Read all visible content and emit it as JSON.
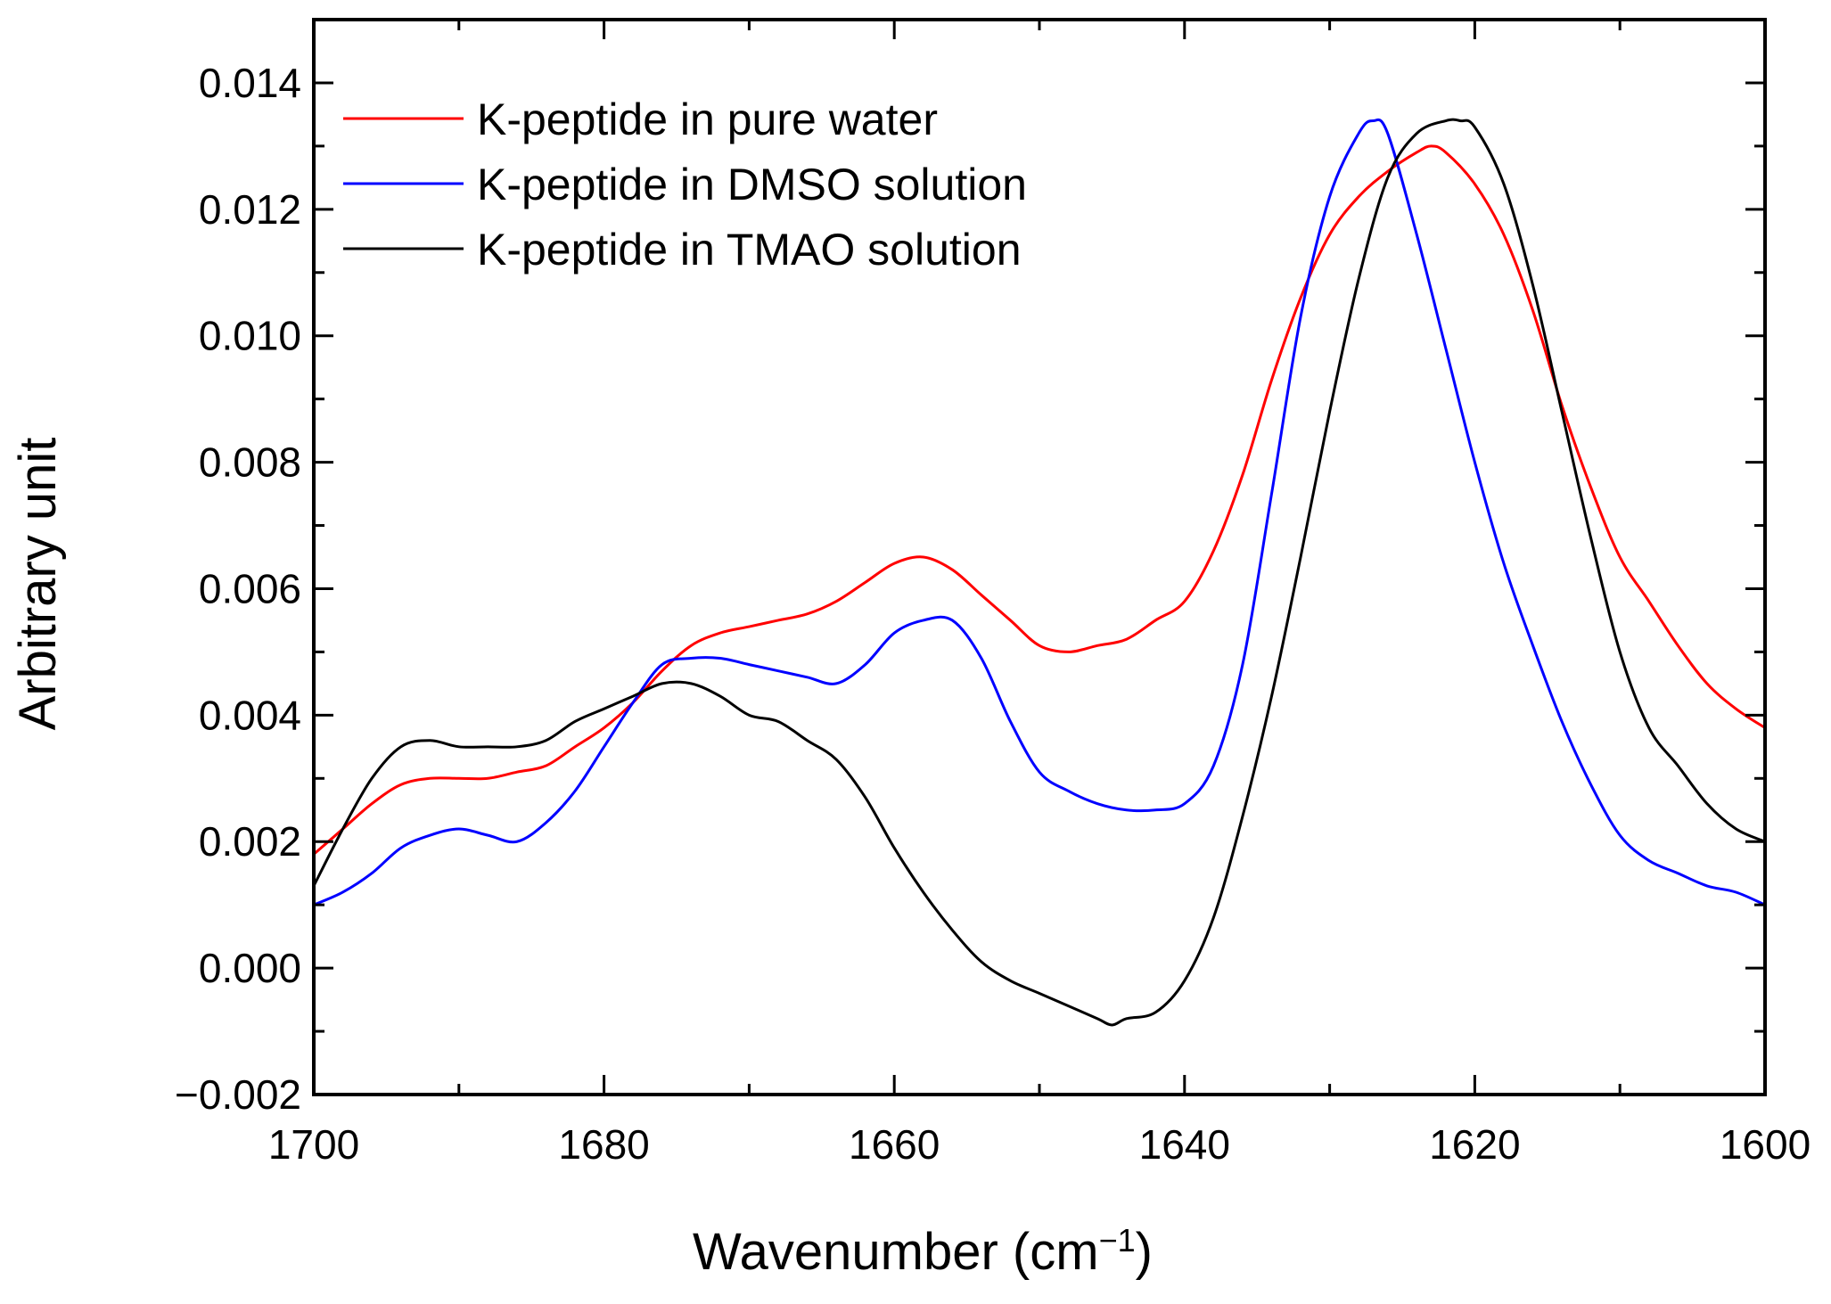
{
  "chart_data": {
    "type": "line",
    "title": "",
    "xlabel": "Wavenumber (cm",
    "xlabel_sup": "−1",
    "xlabel_suffix": ")",
    "ylabel": "Arbitrary unit",
    "xlim": [
      1700,
      1600
    ],
    "ylim": [
      -0.002,
      0.015
    ],
    "x_reversed": true,
    "grid": false,
    "legend_position": "top-left",
    "x_ticks": [
      1700,
      1680,
      1660,
      1640,
      1620,
      1600
    ],
    "x_tick_labels": [
      "1700",
      "1680",
      "1660",
      "1640",
      "1620",
      "1600"
    ],
    "y_ticks": [
      -0.002,
      0.0,
      0.002,
      0.004,
      0.006,
      0.008,
      0.01,
      0.012,
      0.014
    ],
    "y_tick_labels": [
      "−0.002",
      "0.000",
      "0.002",
      "0.004",
      "0.006",
      "0.008",
      "0.010",
      "0.012",
      "0.014"
    ],
    "series": [
      {
        "name": "K-peptide in pure water",
        "color": "#ff0000",
        "x": [
          1700,
          1698,
          1696,
          1694,
          1692,
          1690,
          1688,
          1686,
          1684,
          1682,
          1680,
          1678,
          1676,
          1674,
          1672,
          1670,
          1668,
          1666,
          1664,
          1662,
          1660,
          1658,
          1656,
          1654,
          1652,
          1650,
          1648,
          1646,
          1644,
          1642,
          1640,
          1638,
          1636,
          1634,
          1632,
          1630,
          1628,
          1626,
          1624,
          1623,
          1622,
          1620,
          1618,
          1616,
          1614,
          1612,
          1610,
          1608,
          1606,
          1604,
          1602,
          1600
        ],
        "values": [
          0.0018,
          0.0022,
          0.0026,
          0.0029,
          0.003,
          0.003,
          0.003,
          0.0031,
          0.0032,
          0.0035,
          0.0038,
          0.0042,
          0.0047,
          0.0051,
          0.0053,
          0.0054,
          0.0055,
          0.0056,
          0.0058,
          0.0061,
          0.0064,
          0.0065,
          0.0063,
          0.0059,
          0.0055,
          0.0051,
          0.005,
          0.0051,
          0.0052,
          0.0055,
          0.0058,
          0.0066,
          0.0078,
          0.0093,
          0.0106,
          0.0116,
          0.0122,
          0.0126,
          0.0129,
          0.013,
          0.0129,
          0.0124,
          0.0116,
          0.0104,
          0.0089,
          0.0076,
          0.0065,
          0.0058,
          0.0051,
          0.0045,
          0.0041,
          0.0038
        ]
      },
      {
        "name": "K-peptide in DMSO solution",
        "color": "#0000ff",
        "x": [
          1700,
          1698,
          1696,
          1694,
          1692,
          1690,
          1688,
          1686,
          1684,
          1682,
          1680,
          1678,
          1676,
          1674,
          1672,
          1670,
          1668,
          1666,
          1664,
          1662,
          1660,
          1658,
          1656,
          1654,
          1652,
          1650,
          1648,
          1646,
          1644,
          1642,
          1640,
          1638,
          1636,
          1634,
          1632,
          1630,
          1628,
          1627,
          1626,
          1624,
          1622,
          1620,
          1618,
          1616,
          1614,
          1612,
          1610,
          1608,
          1606,
          1604,
          1602,
          1600
        ],
        "values": [
          0.001,
          0.0012,
          0.0015,
          0.0019,
          0.0021,
          0.0022,
          0.0021,
          0.002,
          0.0023,
          0.0028,
          0.0035,
          0.0042,
          0.0048,
          0.0049,
          0.0049,
          0.0048,
          0.0047,
          0.0046,
          0.0045,
          0.0048,
          0.0053,
          0.0055,
          0.0055,
          0.0049,
          0.0039,
          0.0031,
          0.0028,
          0.0026,
          0.0025,
          0.0025,
          0.0026,
          0.0032,
          0.0048,
          0.0075,
          0.0103,
          0.0122,
          0.0132,
          0.0134,
          0.0132,
          0.0116,
          0.0098,
          0.008,
          0.0064,
          0.0051,
          0.0039,
          0.0029,
          0.0021,
          0.0017,
          0.0015,
          0.0013,
          0.0012,
          0.001
        ]
      },
      {
        "name": "K-peptide in TMAO solution",
        "color": "#000000",
        "x": [
          1700,
          1698,
          1696,
          1694,
          1692,
          1690,
          1688,
          1686,
          1684,
          1682,
          1680,
          1678,
          1676,
          1674,
          1672,
          1670,
          1668,
          1666,
          1664,
          1662,
          1660,
          1658,
          1656,
          1654,
          1652,
          1650,
          1648,
          1646,
          1645,
          1644,
          1642,
          1640,
          1638,
          1636,
          1634,
          1632,
          1630,
          1628,
          1626,
          1624,
          1622,
          1621,
          1620,
          1618,
          1616,
          1614,
          1612,
          1610,
          1608,
          1606,
          1604,
          1602,
          1600
        ],
        "values": [
          0.0013,
          0.0022,
          0.003,
          0.0035,
          0.0036,
          0.0035,
          0.0035,
          0.0035,
          0.0036,
          0.0039,
          0.0041,
          0.0043,
          0.0045,
          0.0045,
          0.0043,
          0.004,
          0.0039,
          0.0036,
          0.0033,
          0.0027,
          0.0019,
          0.0012,
          0.0006,
          0.0001,
          -0.0002,
          -0.0004,
          -0.0006,
          -0.0008,
          -0.0009,
          -0.0008,
          -0.0007,
          -0.0002,
          0.0008,
          0.0024,
          0.0043,
          0.0065,
          0.0088,
          0.0109,
          0.0125,
          0.0132,
          0.0134,
          0.0134,
          0.0133,
          0.0124,
          0.0108,
          0.0088,
          0.0068,
          0.005,
          0.0038,
          0.0032,
          0.0026,
          0.0022,
          0.002
        ]
      }
    ]
  }
}
